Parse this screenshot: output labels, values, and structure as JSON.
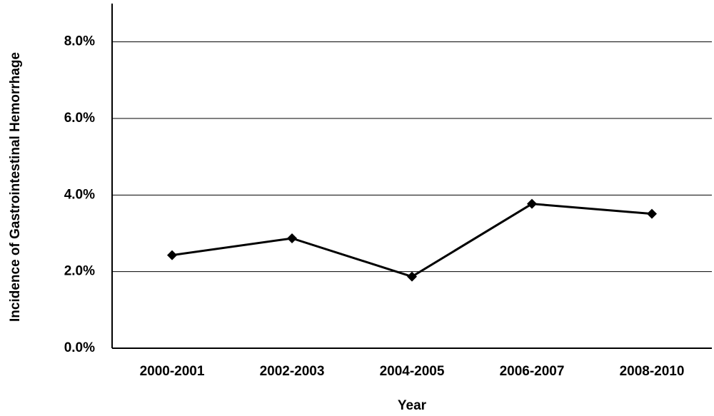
{
  "chart_data": {
    "type": "line",
    "x_label": "Year",
    "y_label": "Incidence of Gastrointestinal Hemorrhage",
    "categories": [
      "2000-2001",
      "2002-2003",
      "2004-2005",
      "2006-2007",
      "2008-2010"
    ],
    "values": [
      2.43,
      2.87,
      1.87,
      3.77,
      3.51
    ],
    "color": "#000000",
    "ylim": [
      0,
      9
    ],
    "yticks": [
      {
        "value": 0,
        "label": "0.0%"
      },
      {
        "value": 2,
        "label": "2.0%"
      },
      {
        "value": 4,
        "label": "4.0%"
      },
      {
        "value": 6,
        "label": "6.0%"
      },
      {
        "value": 8,
        "label": "8.0%"
      }
    ],
    "grid": true
  }
}
